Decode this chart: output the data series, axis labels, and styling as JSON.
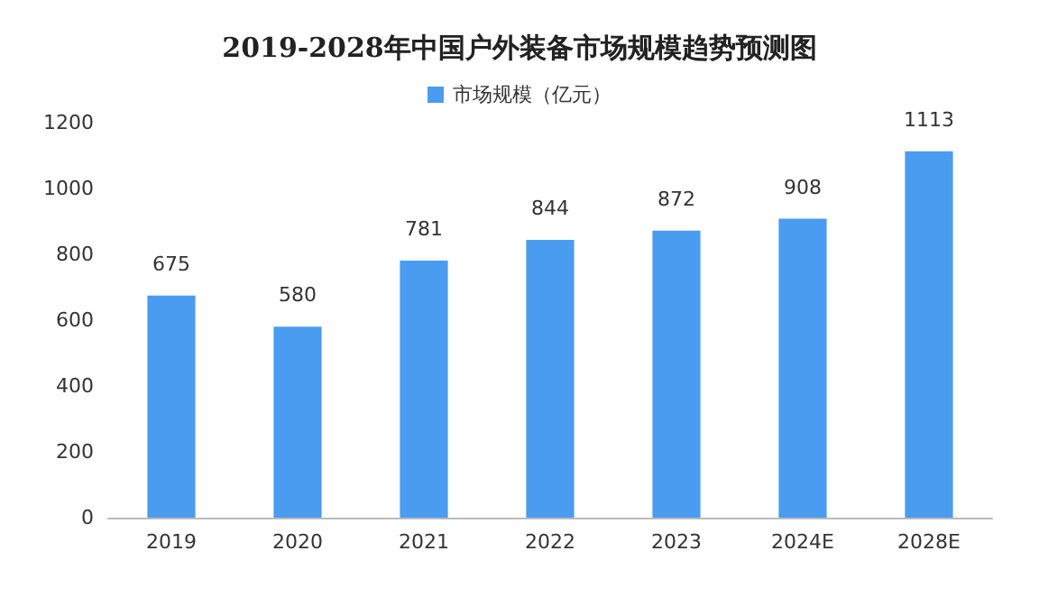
{
  "chart_data": {
    "type": "bar",
    "title": "2019-2028年中国户外装备市场规模趋势预测图",
    "categories": [
      "2019",
      "2020",
      "2021",
      "2022",
      "2023",
      "2024E",
      "2028E"
    ],
    "series": [
      {
        "name": "市场规模（亿元）",
        "color": "#4a9cf0",
        "values": [
          675,
          580,
          781,
          844,
          872,
          908,
          1113
        ]
      }
    ],
    "ylim": [
      0,
      1200
    ],
    "yticks": [
      0,
      200,
      400,
      600,
      800,
      1000,
      1200
    ],
    "grid": false,
    "legend": "top",
    "data_labels": true
  }
}
